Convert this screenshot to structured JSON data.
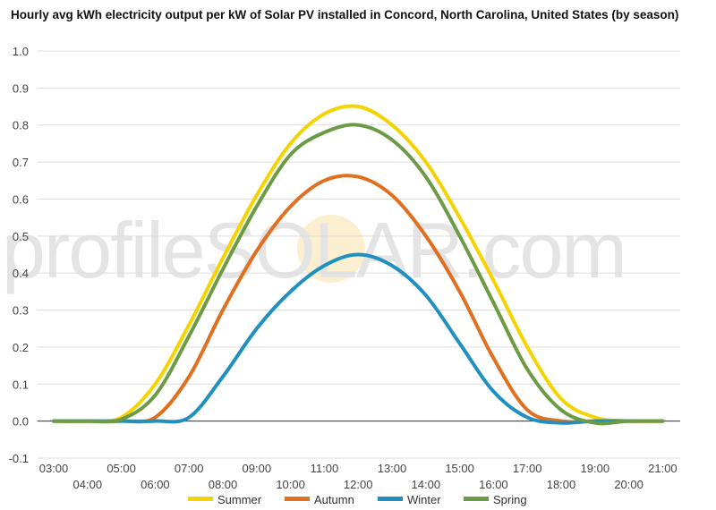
{
  "chart_data": {
    "type": "line",
    "title": "Hourly avg kWh electricity output per kW of Solar PV installed in Concord, North Carolina, United States (by season)",
    "xlabel": "",
    "ylabel": "",
    "ylim": [
      -0.1,
      1.0
    ],
    "yticks": [
      "-0.1",
      "0.0",
      "0.1",
      "0.2",
      "0.3",
      "0.4",
      "0.5",
      "0.6",
      "0.7",
      "0.8",
      "0.9",
      "1.0"
    ],
    "x": [
      "03:00",
      "04:00",
      "05:00",
      "06:00",
      "07:00",
      "08:00",
      "09:00",
      "10:00",
      "11:00",
      "12:00",
      "13:00",
      "14:00",
      "15:00",
      "16:00",
      "17:00",
      "18:00",
      "19:00",
      "20:00",
      "21:00"
    ],
    "grid": true,
    "legend_position": "bottom",
    "series": [
      {
        "name": "Summer",
        "color": "#f5d300",
        "values": [
          0,
          0,
          0.01,
          0.1,
          0.26,
          0.44,
          0.61,
          0.75,
          0.83,
          0.85,
          0.8,
          0.7,
          0.55,
          0.38,
          0.2,
          0.06,
          0.01,
          0,
          0
        ]
      },
      {
        "name": "Autumn",
        "color": "#e07020",
        "values": [
          0,
          0,
          0,
          0.01,
          0.12,
          0.3,
          0.46,
          0.58,
          0.65,
          0.66,
          0.61,
          0.5,
          0.35,
          0.17,
          0.03,
          0,
          0,
          0,
          0
        ]
      },
      {
        "name": "Winter",
        "color": "#2090c0",
        "values": [
          0,
          0,
          0,
          0,
          0.01,
          0.12,
          0.25,
          0.35,
          0.42,
          0.45,
          0.42,
          0.34,
          0.21,
          0.08,
          0.01,
          -0.005,
          0,
          0,
          0
        ]
      },
      {
        "name": "Spring",
        "color": "#6b9b45",
        "values": [
          0,
          0,
          0.005,
          0.07,
          0.23,
          0.41,
          0.58,
          0.72,
          0.78,
          0.8,
          0.76,
          0.66,
          0.5,
          0.32,
          0.14,
          0.03,
          -0.005,
          0,
          0
        ]
      }
    ],
    "watermark": "profileSOLAR.com"
  }
}
